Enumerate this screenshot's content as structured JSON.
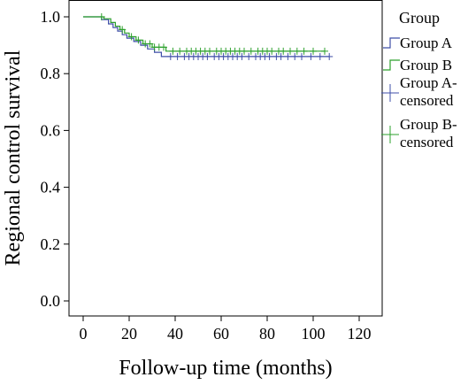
{
  "chart_data": {
    "type": "line",
    "subtype": "kaplan-meier",
    "xlabel": "Follow-up time (months)",
    "ylabel": "Regional control survival",
    "xlim": [
      0,
      120
    ],
    "ylim": [
      0.0,
      1.0
    ],
    "x_ticks": [
      0,
      20,
      40,
      60,
      80,
      100,
      120
    ],
    "y_ticks": [
      0.0,
      0.2,
      0.4,
      0.6,
      0.8,
      1.0
    ],
    "x_tick_labels": [
      "0",
      "20",
      "40",
      "60",
      "80",
      "100",
      "120"
    ],
    "y_tick_labels": [
      "0.0",
      "0.2",
      "0.4",
      "0.6",
      "0.8",
      "1.0"
    ],
    "grid": false,
    "legend": {
      "title": "Group",
      "placement": "right",
      "entries": [
        {
          "label": "Group A",
          "kind": "step",
          "series": "Group A"
        },
        {
          "label": "Group B",
          "kind": "step",
          "series": "Group B"
        },
        {
          "label": [
            "Group A-",
            "censored"
          ],
          "kind": "censor",
          "series": "Group A"
        },
        {
          "label": [
            "Group B-",
            "censored"
          ],
          "kind": "censor",
          "series": "Group B"
        }
      ]
    },
    "series": [
      {
        "name": "Group A",
        "color": "#3f4fa8",
        "steps": [
          [
            0,
            1.0
          ],
          [
            8,
            1.0
          ],
          [
            8,
            0.99
          ],
          [
            11,
            0.99
          ],
          [
            11,
            0.975
          ],
          [
            13,
            0.975
          ],
          [
            13,
            0.962
          ],
          [
            15,
            0.962
          ],
          [
            15,
            0.95
          ],
          [
            17,
            0.95
          ],
          [
            17,
            0.937
          ],
          [
            19,
            0.937
          ],
          [
            19,
            0.925
          ],
          [
            22,
            0.925
          ],
          [
            22,
            0.913
          ],
          [
            25,
            0.913
          ],
          [
            25,
            0.9
          ],
          [
            28,
            0.9
          ],
          [
            28,
            0.887
          ],
          [
            31,
            0.887
          ],
          [
            31,
            0.875
          ],
          [
            34,
            0.875
          ],
          [
            34,
            0.86
          ],
          [
            107,
            0.86
          ]
        ],
        "censored_x": [
          38,
          41,
          44,
          46,
          48,
          50,
          52,
          54,
          57,
          59,
          61,
          63,
          65,
          67,
          69,
          72,
          75,
          77,
          79,
          81,
          84,
          86,
          89,
          92,
          95,
          99,
          103,
          107
        ],
        "censored_y": 0.86
      },
      {
        "name": "Group B",
        "color": "#2ca02c",
        "steps": [
          [
            0,
            1.0
          ],
          [
            9,
            1.0
          ],
          [
            9,
            0.993
          ],
          [
            12,
            0.993
          ],
          [
            12,
            0.98
          ],
          [
            14,
            0.98
          ],
          [
            14,
            0.967
          ],
          [
            16,
            0.967
          ],
          [
            16,
            0.955
          ],
          [
            18,
            0.955
          ],
          [
            18,
            0.943
          ],
          [
            20,
            0.943
          ],
          [
            20,
            0.93
          ],
          [
            23,
            0.93
          ],
          [
            23,
            0.918
          ],
          [
            26,
            0.918
          ],
          [
            26,
            0.905
          ],
          [
            30,
            0.905
          ],
          [
            30,
            0.893
          ],
          [
            36,
            0.893
          ],
          [
            36,
            0.879
          ],
          [
            105,
            0.879
          ]
        ],
        "censored_x": [
          8,
          17,
          21,
          24,
          27,
          29,
          31,
          33,
          35,
          39,
          42,
          45,
          47,
          49,
          51,
          53,
          55,
          58,
          60,
          62,
          64,
          66,
          68,
          70,
          73,
          76,
          78,
          80,
          82,
          85,
          87,
          90,
          93,
          96,
          100,
          105
        ],
        "censored_y": 0.879
      }
    ]
  }
}
